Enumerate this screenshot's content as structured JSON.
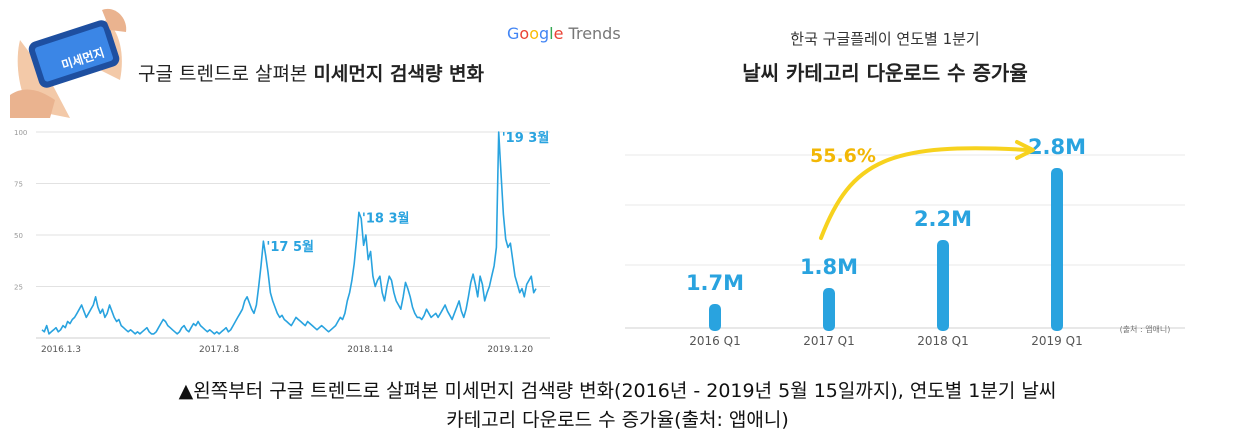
{
  "left_panel": {
    "badge": "미세먼지",
    "title_normal": "구글 트렌드로 살펴본 ",
    "title_bold": "미세먼지 검색량 변화",
    "logo": {
      "g": "G",
      "o1": "o",
      "o2": "o",
      "g2": "g",
      "l": "l",
      "e": "e",
      "trends": "Trends"
    }
  },
  "right_panel": {
    "subtitle": "한국 구글플레이 연도별 1분기",
    "title": "날씨 카테고리 다운로드 수 증가율",
    "growth_label": "55.6%",
    "source": "(출처 : 앱애니)"
  },
  "chart_data": [
    {
      "type": "line",
      "color": "#29a3df",
      "ylim": [
        0,
        100
      ],
      "y_ticks": [
        "100",
        "75",
        "50",
        "25"
      ],
      "x_tick_labels": [
        "2016.1.3",
        "2017.1.8",
        "2018.1.14",
        "2019.1.20"
      ],
      "annotations": [
        "'17 5월",
        "'18 3월",
        "'19 3월"
      ],
      "values": [
        4,
        3,
        6,
        2,
        3,
        4,
        5,
        3,
        4,
        6,
        5,
        8,
        7,
        9,
        10,
        12,
        14,
        16,
        13,
        10,
        12,
        14,
        16,
        20,
        15,
        12,
        14,
        10,
        12,
        16,
        13,
        10,
        8,
        9,
        6,
        5,
        4,
        3,
        4,
        3,
        2,
        3,
        2,
        3,
        4,
        5,
        3,
        2,
        2,
        3,
        5,
        7,
        9,
        8,
        6,
        5,
        4,
        3,
        2,
        3,
        5,
        6,
        4,
        3,
        5,
        7,
        6,
        8,
        6,
        5,
        4,
        3,
        4,
        3,
        2,
        3,
        2,
        3,
        4,
        5,
        3,
        4,
        6,
        8,
        10,
        12,
        14,
        18,
        20,
        17,
        14,
        12,
        16,
        25,
        35,
        47,
        40,
        32,
        22,
        18,
        15,
        12,
        10,
        11,
        9,
        8,
        7,
        6,
        8,
        10,
        9,
        8,
        7,
        6,
        8,
        7,
        6,
        5,
        4,
        5,
        6,
        5,
        4,
        3,
        4,
        5,
        6,
        8,
        10,
        9,
        12,
        18,
        22,
        28,
        36,
        48,
        61,
        58,
        45,
        50,
        38,
        42,
        30,
        25,
        28,
        30,
        22,
        18,
        25,
        30,
        28,
        22,
        18,
        16,
        14,
        20,
        27,
        24,
        20,
        15,
        12,
        10,
        10,
        9,
        11,
        14,
        12,
        10,
        11,
        12,
        10,
        12,
        14,
        16,
        13,
        11,
        9,
        12,
        15,
        18,
        13,
        10,
        14,
        20,
        27,
        31,
        26,
        20,
        30,
        26,
        18,
        22,
        25,
        30,
        35,
        44,
        100,
        80,
        60,
        48,
        44,
        46,
        38,
        30,
        26,
        22,
        24,
        20,
        26,
        28,
        30,
        22,
        24
      ]
    },
    {
      "type": "bar",
      "color": "#29a3df",
      "categories": [
        "2016 Q1",
        "2017 Q1",
        "2018 Q1",
        "2019 Q1"
      ],
      "values": [
        1.7,
        1.8,
        2.2,
        2.8
      ],
      "value_labels": [
        "1.7M",
        "1.8M",
        "2.2M",
        "2.8M"
      ]
    }
  ],
  "caption": {
    "line1": "▲왼쪽부터 구글 트렌드로 살펴본 미세먼지 검색량 변화(2016년 - 2019년 5월 15일까지), 연도별 1분기 날씨",
    "line2": "카테고리 다운로드 수 증가율(출처: 앱애니)"
  }
}
